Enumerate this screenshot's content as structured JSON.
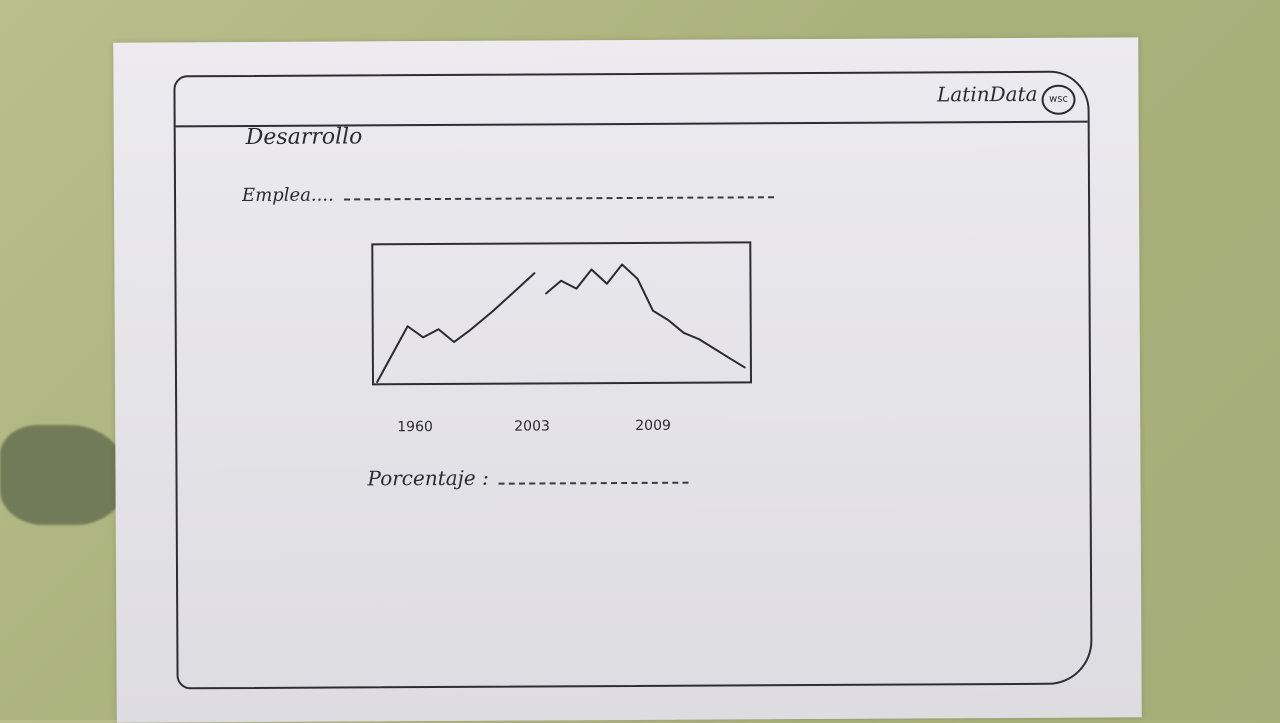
{
  "app": {
    "brand": "LatinData",
    "logo_text": "wsc"
  },
  "page": {
    "title": "Desarrollo"
  },
  "fields": {
    "emplea_label": "Emplea....",
    "porcentaje_label": "Porcentaje :"
  },
  "chart_data": {
    "type": "line",
    "tick_labels": [
      "1960",
      "2003",
      "2009"
    ],
    "series": [
      {
        "values": [
          {
            "x": 1960,
            "y": 0
          },
          {
            "x": 1968,
            "y": 35
          },
          {
            "x": 1972,
            "y": 28
          },
          {
            "x": 1976,
            "y": 33
          },
          {
            "x": 1980,
            "y": 25
          },
          {
            "x": 1984,
            "y": 32
          },
          {
            "x": 1990,
            "y": 44
          },
          {
            "x": 1996,
            "y": 57
          },
          {
            "x": 2001,
            "y": 68
          },
          {
            "x": 2002,
            "y": 55
          },
          {
            "x": 2003,
            "y": 63
          },
          {
            "x": 2004,
            "y": 58
          },
          {
            "x": 2005,
            "y": 70
          },
          {
            "x": 2006,
            "y": 61
          },
          {
            "x": 2007,
            "y": 73
          },
          {
            "x": 2008,
            "y": 64
          },
          {
            "x": 2009,
            "y": 44
          },
          {
            "x": 2010,
            "y": 38
          },
          {
            "x": 2011,
            "y": 30
          },
          {
            "x": 2012,
            "y": 26
          },
          {
            "x": 2013,
            "y": 20
          },
          {
            "x": 2014,
            "y": 14
          },
          {
            "x": 2015,
            "y": 8
          }
        ]
      }
    ],
    "grid": false
  }
}
